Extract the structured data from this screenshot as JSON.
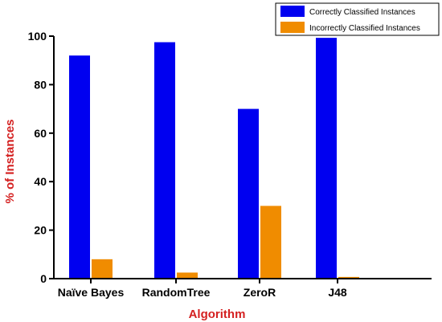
{
  "chart_data": {
    "type": "bar",
    "categories": [
      "Naïve Bayes",
      "RandomTree",
      "ZeroR",
      "J48"
    ],
    "series": [
      {
        "name": "Correctly Classified Instances",
        "values": [
          92,
          97.5,
          70,
          99.3
        ],
        "color": "#0000f0"
      },
      {
        "name": "Incorrectly Classified Instances",
        "values": [
          8,
          2.5,
          30,
          0.7
        ],
        "color": "#f08c00"
      }
    ],
    "title": "",
    "xlabel": "Algorithm",
    "ylabel": "% of Instances",
    "ylim": [
      0,
      100
    ],
    "yticks": [
      0,
      20,
      40,
      60,
      80,
      100
    ],
    "grid": false,
    "legend_position": "top-right",
    "label_color": "#d42020"
  }
}
